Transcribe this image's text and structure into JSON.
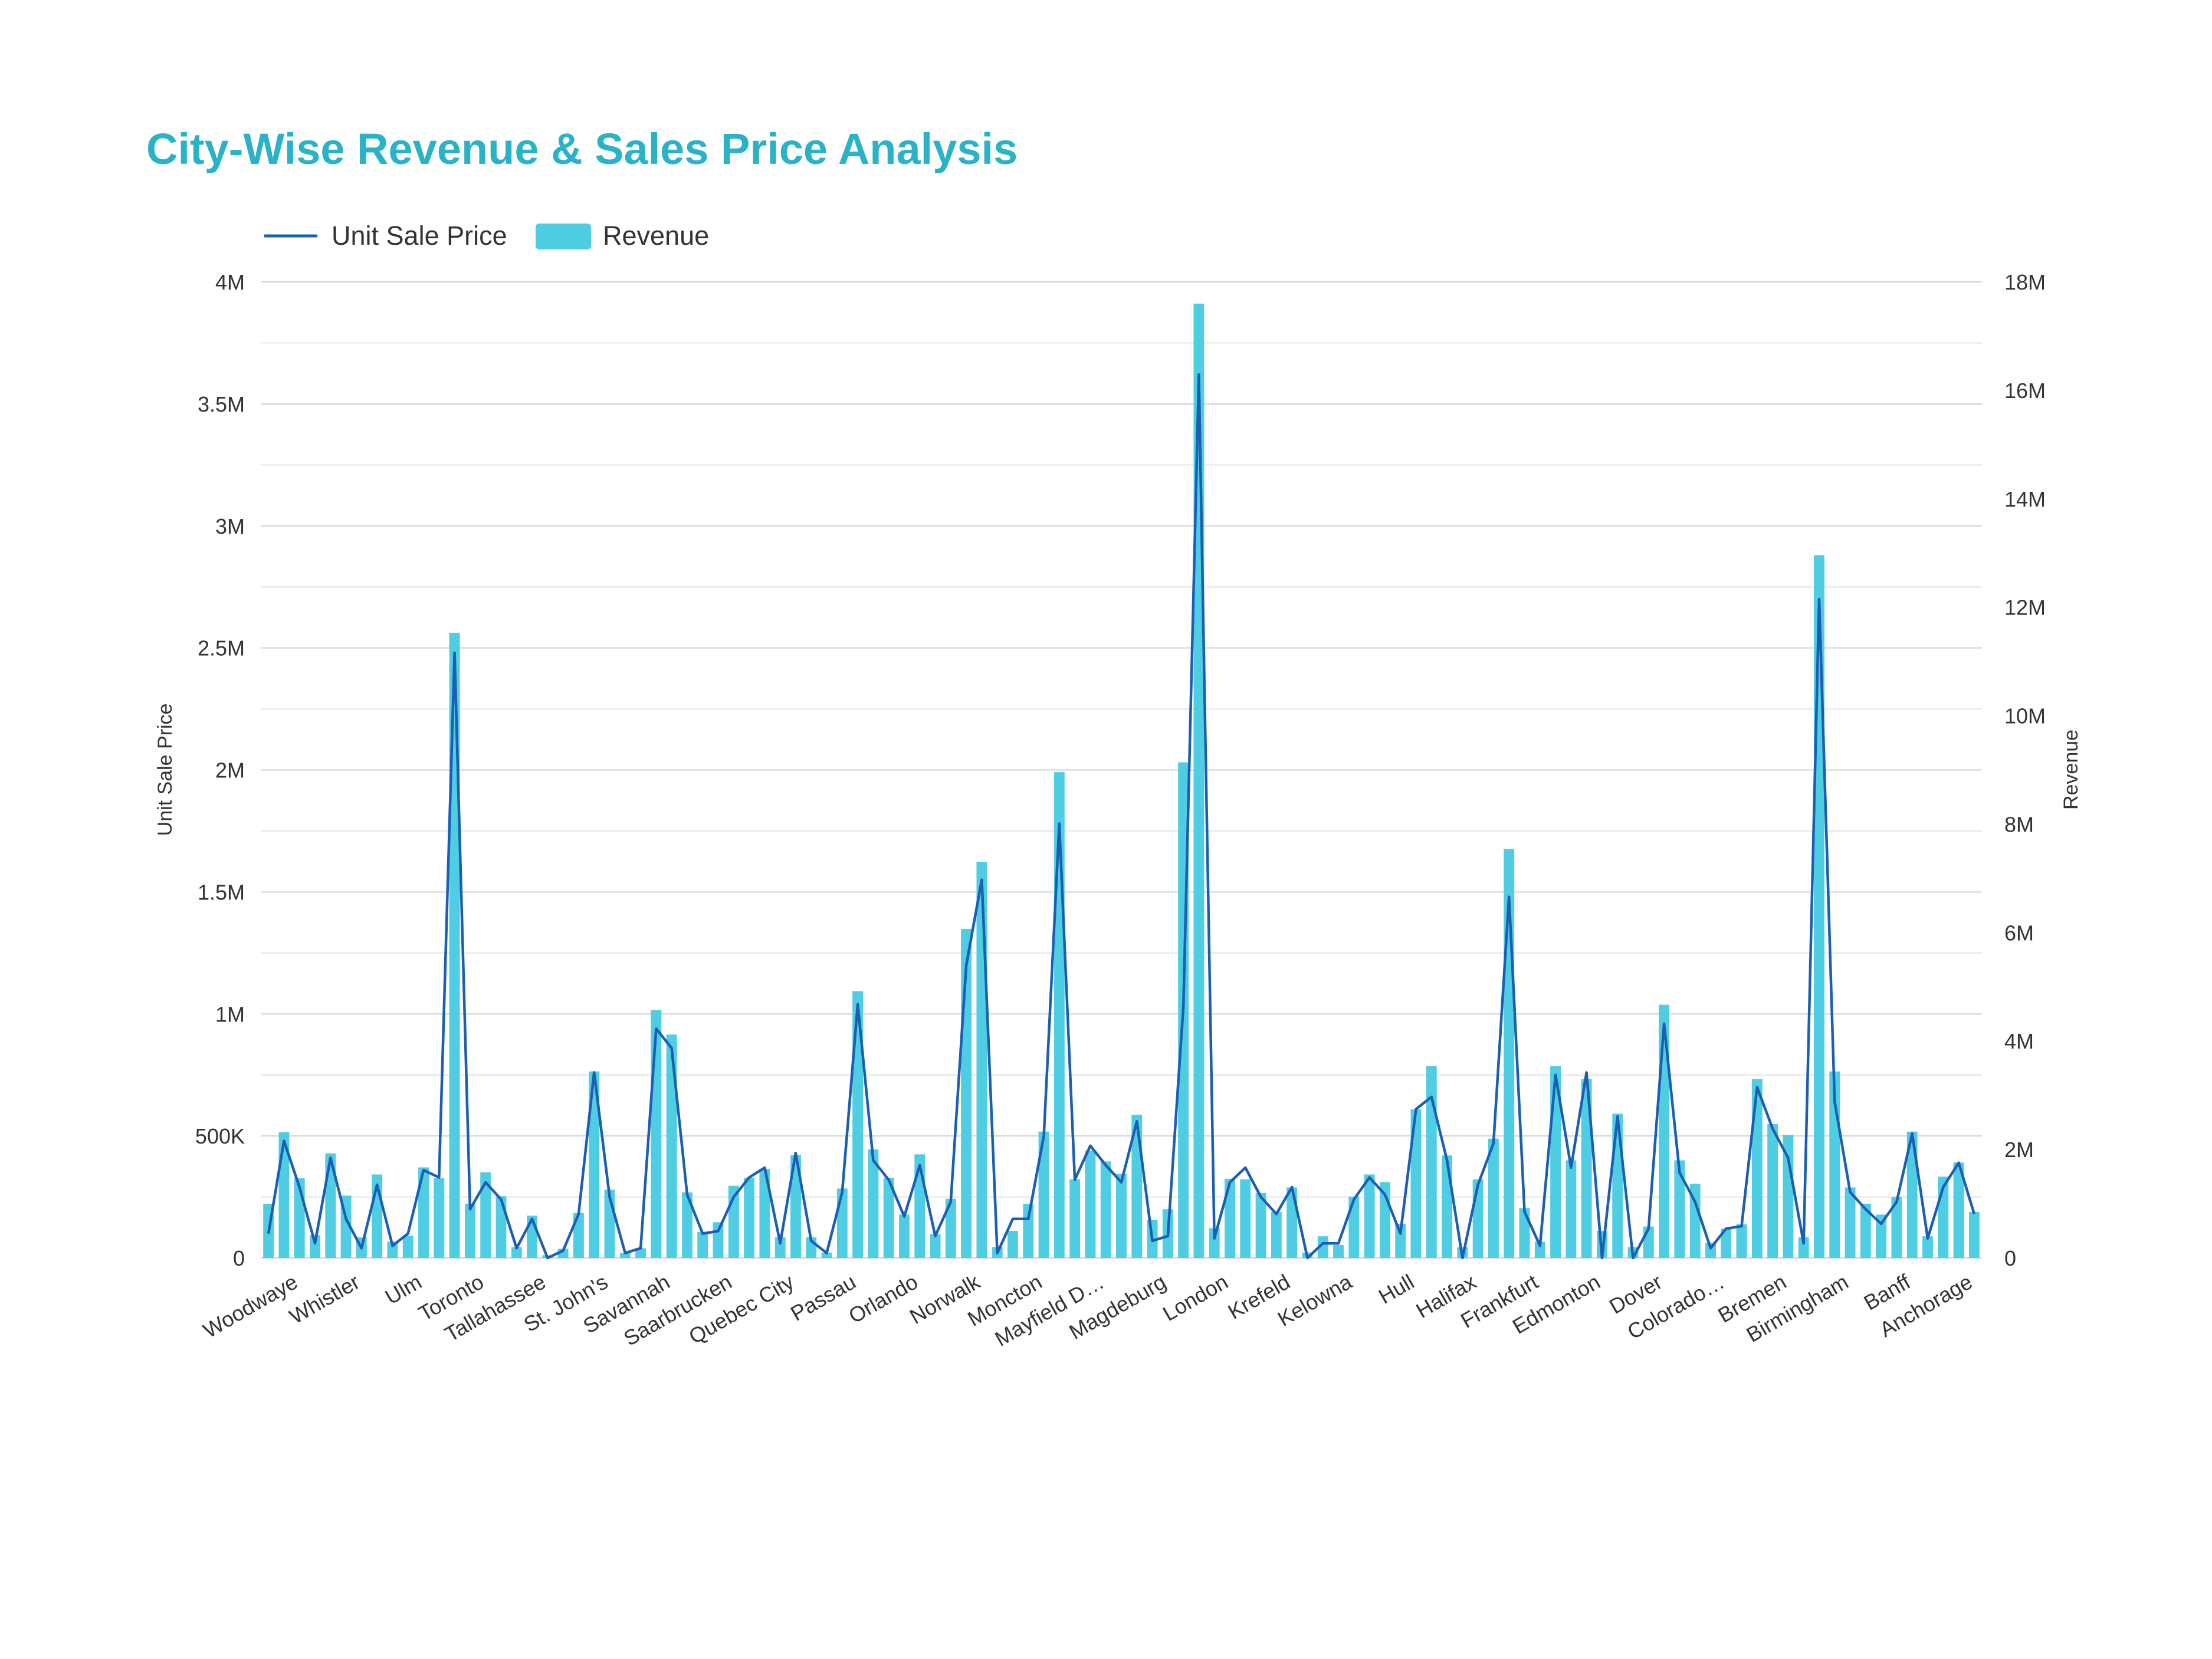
{
  "colors": {
    "title": "#2ab3c8",
    "line": "#1a5fb4",
    "bar": "#4ecde3"
  },
  "chart_data": {
    "type": "bar",
    "title": "City-Wise Revenue & Sales Price Analysis",
    "legend": {
      "position": "top-left",
      "items": [
        "Unit Sale Price",
        "Revenue"
      ]
    },
    "y_left": {
      "label": "Unit Sale Price",
      "range": [
        0,
        4000000
      ],
      "ticks": [
        "0",
        "500K",
        "1M",
        "1.5M",
        "2M",
        "2.5M",
        "3M",
        "3.5M",
        "4M"
      ]
    },
    "y_right": {
      "label": "Revenue",
      "range": [
        0,
        18000000
      ],
      "ticks": [
        "0",
        "2M",
        "4M",
        "6M",
        "8M",
        "10M",
        "12M",
        "14M",
        "16M",
        "18M"
      ]
    },
    "x_tick_labels": [
      "Woodwaye",
      "Whistler",
      "Ulm",
      "Toronto",
      "Tallahassee",
      "St. John's",
      "Savannah",
      "Saarbrucken",
      "Quebec City",
      "Passau",
      "Orlando",
      "Norwalk",
      "Moncton",
      "Mayfield D…",
      "Magdeburg",
      "London",
      "Krefeld",
      "Kelowna",
      "Hull",
      "Halifax",
      "Frankfurt",
      "Edmonton",
      "Dover",
      "Colorado…",
      "Bremen",
      "Birmingham",
      "Banff",
      "Anchorage"
    ],
    "grid": true,
    "series": [
      {
        "name": "Revenue",
        "axis": "right",
        "type": "bar",
        "values": [
          1.0,
          2.32,
          1.47,
          0.42,
          1.93,
          1.15,
          0.38,
          1.54,
          0.3,
          0.41,
          1.67,
          1.47,
          11.53,
          1.0,
          1.58,
          1.14,
          0.2,
          0.78,
          0.05,
          0.17,
          0.83,
          3.44,
          1.26,
          0.09,
          0.18,
          4.57,
          4.12,
          1.21,
          0.48,
          0.66,
          1.33,
          1.48,
          1.64,
          0.38,
          1.9,
          0.38,
          0.1,
          1.28,
          4.92,
          2.0,
          1.48,
          0.8,
          1.91,
          0.44,
          1.09,
          6.07,
          7.3,
          0.2,
          0.5,
          1.0,
          2.33,
          8.96,
          1.45,
          1.98,
          1.78,
          1.55,
          2.64,
          0.7,
          0.9,
          9.14,
          17.6,
          0.55,
          1.46,
          1.45,
          1.2,
          0.85,
          1.3,
          0.1,
          0.4,
          0.24,
          1.13,
          1.54,
          1.4,
          0.63,
          2.74,
          3.54,
          1.89,
          0.2,
          1.45,
          2.2,
          7.54,
          0.92,
          0.3,
          3.54,
          1.8,
          3.3,
          0.5,
          2.66,
          0.2,
          0.58,
          4.67,
          1.8,
          1.37,
          0.28,
          0.54,
          0.62,
          3.3,
          2.47,
          2.27,
          0.38,
          12.96,
          3.44,
          1.3,
          1.0,
          0.8,
          1.12,
          2.33,
          0.4,
          1.5,
          1.76,
          0.85
        ]
      },
      {
        "name": "Unit Sale Price",
        "axis": "left",
        "type": "line",
        "values": [
          100000,
          480000,
          290000,
          60000,
          410000,
          160000,
          40000,
          300000,
          50000,
          100000,
          360000,
          330000,
          2480000,
          200000,
          310000,
          240000,
          40000,
          160000,
          0,
          30000,
          180000,
          760000,
          250000,
          20000,
          40000,
          940000,
          860000,
          260000,
          100000,
          110000,
          250000,
          330000,
          370000,
          60000,
          430000,
          70000,
          20000,
          270000,
          1040000,
          400000,
          320000,
          170000,
          380000,
          90000,
          230000,
          1200000,
          1550000,
          20000,
          160000,
          160000,
          500000,
          1780000,
          320000,
          460000,
          380000,
          310000,
          560000,
          70000,
          90000,
          1030000,
          3620000,
          80000,
          310000,
          370000,
          250000,
          180000,
          290000,
          0,
          60000,
          60000,
          240000,
          330000,
          260000,
          100000,
          610000,
          660000,
          400000,
          0,
          300000,
          470000,
          1480000,
          190000,
          50000,
          750000,
          370000,
          760000,
          0,
          580000,
          0,
          120000,
          960000,
          350000,
          230000,
          40000,
          120000,
          130000,
          700000,
          530000,
          410000,
          60000,
          2700000,
          640000,
          270000,
          200000,
          140000,
          230000,
          510000,
          80000,
          290000,
          390000,
          180000
        ]
      }
    ]
  }
}
